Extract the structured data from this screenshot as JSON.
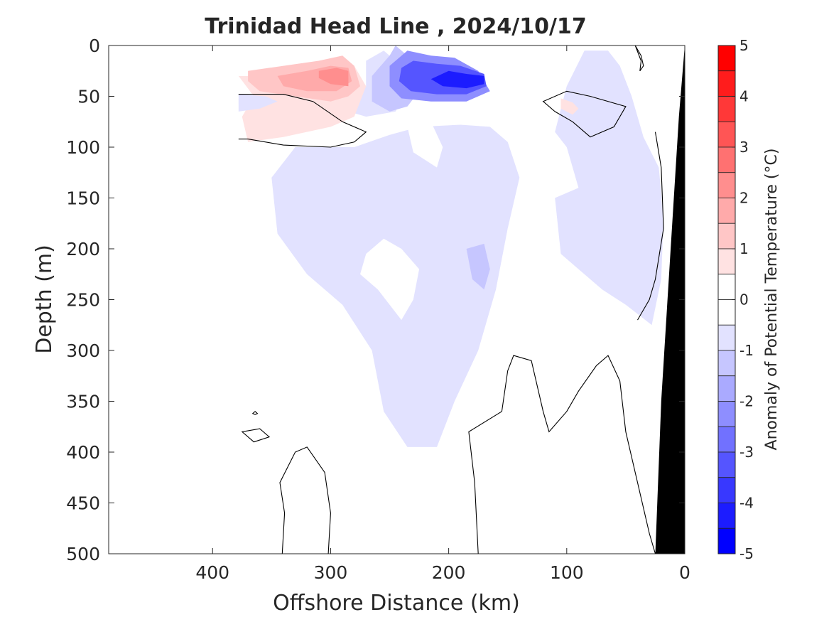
{
  "chart_data": {
    "type": "heatmap",
    "title": "Trinidad Head Line , 2024/10/17",
    "xlabel": "Offshore Distance (km)",
    "ylabel": "Depth (m)",
    "xlim": [
      488,
      0
    ],
    "ylim": [
      500,
      0
    ],
    "x_reversed": true,
    "y_reversed": true,
    "x_ticks": [
      400,
      300,
      200,
      100,
      0
    ],
    "x_tick_labels": [
      "400",
      "300",
      "200",
      "100",
      "0"
    ],
    "y_ticks": [
      0,
      50,
      100,
      150,
      200,
      250,
      300,
      350,
      400,
      450,
      500
    ],
    "y_tick_labels": [
      "0",
      "50",
      "100",
      "150",
      "200",
      "250",
      "300",
      "350",
      "400",
      "450",
      "500"
    ],
    "colorbar": {
      "label": "Anomaly of Potential Temperature (°C)",
      "range": [
        -5,
        5
      ],
      "ticks": [
        5,
        4,
        3,
        2,
        1,
        0,
        -1,
        -2,
        -3,
        -4,
        -5
      ],
      "tick_labels": [
        "5",
        "4",
        "3",
        "2",
        "1",
        "0",
        "-1",
        "-2",
        "-3",
        "-4",
        "-5"
      ],
      "levels": [
        {
          "from": 4.5,
          "to": 5.0,
          "color": "#ff0000"
        },
        {
          "from": 4.0,
          "to": 4.5,
          "color": "#ff1c1c"
        },
        {
          "from": 3.5,
          "to": 4.0,
          "color": "#ff3838"
        },
        {
          "from": 3.0,
          "to": 3.5,
          "color": "#ff5555"
        },
        {
          "from": 2.5,
          "to": 3.0,
          "color": "#ff7171"
        },
        {
          "from": 2.0,
          "to": 2.5,
          "color": "#ff8e8e"
        },
        {
          "from": 1.5,
          "to": 2.0,
          "color": "#ffaaaa"
        },
        {
          "from": 1.0,
          "to": 1.5,
          "color": "#ffc6c6"
        },
        {
          "from": 0.5,
          "to": 1.0,
          "color": "#ffe2e2"
        },
        {
          "from": 0.0,
          "to": 0.5,
          "color": "#ffffff"
        },
        {
          "from": -0.5,
          "to": 0.0,
          "color": "#ffffff"
        },
        {
          "from": -1.0,
          "to": -0.5,
          "color": "#e2e2ff"
        },
        {
          "from": -1.5,
          "to": -1.0,
          "color": "#c6c6ff"
        },
        {
          "from": -2.0,
          "to": -1.5,
          "color": "#aaaaff"
        },
        {
          "from": -2.5,
          "to": -2.0,
          "color": "#8e8eff"
        },
        {
          "from": -3.0,
          "to": -2.5,
          "color": "#7171ff"
        },
        {
          "from": -3.5,
          "to": -3.0,
          "color": "#5555ff"
        },
        {
          "from": -4.0,
          "to": -3.5,
          "color": "#3838ff"
        },
        {
          "from": -4.5,
          "to": -4.0,
          "color": "#1c1cff"
        },
        {
          "from": -5.0,
          "to": -4.5,
          "color": "#0000ff"
        }
      ]
    },
    "regions": [
      {
        "value": -0.75,
        "color": "#e2e2ff",
        "points": [
          [
            280,
            100
          ],
          [
            250,
            88
          ],
          [
            225,
            80
          ],
          [
            190,
            78
          ],
          [
            165,
            80
          ],
          [
            150,
            95
          ],
          [
            140,
            130
          ],
          [
            150,
            180
          ],
          [
            160,
            240
          ],
          [
            175,
            300
          ],
          [
            195,
            350
          ],
          [
            210,
            395
          ],
          [
            235,
            395
          ],
          [
            255,
            360
          ],
          [
            265,
            300
          ],
          [
            290,
            255
          ],
          [
            320,
            225
          ],
          [
            345,
            185
          ],
          [
            350,
            130
          ],
          [
            330,
            100
          ]
        ]
      },
      {
        "value": -0.75,
        "color": "#e2e2ff",
        "points": [
          [
            110,
            150
          ],
          [
            105,
            205
          ],
          [
            85,
            225
          ],
          [
            70,
            240
          ],
          [
            50,
            255
          ],
          [
            28,
            275
          ],
          [
            20,
            230
          ],
          [
            18,
            170
          ],
          [
            22,
            120
          ],
          [
            35,
            90
          ],
          [
            45,
            50
          ],
          [
            55,
            20
          ],
          [
            65,
            5
          ],
          [
            85,
            5
          ],
          [
            100,
            40
          ],
          [
            110,
            85
          ],
          [
            100,
            100
          ],
          [
            90,
            140
          ]
        ]
      },
      {
        "value": -1.25,
        "color": "#c6c6ff",
        "points": [
          [
            185,
            200
          ],
          [
            180,
            230
          ],
          [
            170,
            240
          ],
          [
            165,
            220
          ],
          [
            170,
            195
          ]
        ]
      },
      {
        "value": 0.25,
        "color": "#ffffff",
        "points": [
          [
            275,
            225
          ],
          [
            260,
            240
          ],
          [
            240,
            270
          ],
          [
            230,
            250
          ],
          [
            225,
            220
          ],
          [
            240,
            200
          ],
          [
            255,
            190
          ],
          [
            270,
            205
          ]
        ]
      },
      {
        "value": 0.25,
        "color": "#ffffff",
        "points": [
          [
            230,
            105
          ],
          [
            210,
            120
          ],
          [
            205,
            100
          ],
          [
            215,
            75
          ],
          [
            235,
            80
          ]
        ]
      },
      {
        "value": -0.75,
        "color": "#e2e2ff",
        "points": [
          [
            255,
            5
          ],
          [
            240,
            20
          ],
          [
            235,
            45
          ],
          [
            245,
            65
          ],
          [
            270,
            70
          ],
          [
            285,
            65
          ],
          [
            270,
            40
          ],
          [
            270,
            15
          ]
        ]
      },
      {
        "value": -1.25,
        "color": "#c6c6ff",
        "points": [
          [
            245,
            0
          ],
          [
            230,
            15
          ],
          [
            225,
            45
          ],
          [
            235,
            60
          ],
          [
            250,
            65
          ],
          [
            265,
            55
          ],
          [
            265,
            30
          ],
          [
            250,
            10
          ]
        ]
      },
      {
        "value": -2.25,
        "color": "#8e8eff",
        "points": [
          [
            235,
            5
          ],
          [
            215,
            10
          ],
          [
            195,
            12
          ],
          [
            175,
            25
          ],
          [
            165,
            45
          ],
          [
            185,
            55
          ],
          [
            215,
            55
          ],
          [
            240,
            52
          ],
          [
            250,
            40
          ],
          [
            250,
            20
          ]
        ]
      },
      {
        "value": -3.25,
        "color": "#5555ff",
        "points": [
          [
            230,
            15
          ],
          [
            210,
            18
          ],
          [
            190,
            20
          ],
          [
            170,
            28
          ],
          [
            168,
            40
          ],
          [
            185,
            48
          ],
          [
            210,
            48
          ],
          [
            232,
            45
          ],
          [
            242,
            35
          ],
          [
            240,
            22
          ]
        ]
      },
      {
        "value": -4.25,
        "color": "#1c1cff",
        "points": [
          [
            200,
            25
          ],
          [
            185,
            28
          ],
          [
            170,
            30
          ],
          [
            170,
            38
          ],
          [
            185,
            42
          ],
          [
            205,
            40
          ],
          [
            215,
            33
          ]
        ]
      },
      {
        "value": 0.75,
        "color": "#ffe2e2",
        "points": [
          [
            378,
            30
          ],
          [
            340,
            30
          ],
          [
            310,
            25
          ],
          [
            280,
            20
          ],
          [
            270,
            40
          ],
          [
            280,
            70
          ],
          [
            300,
            80
          ],
          [
            340,
            90
          ],
          [
            370,
            95
          ],
          [
            375,
            70
          ],
          [
            365,
            50
          ]
        ]
      },
      {
        "value": 1.25,
        "color": "#ffc6c6",
        "points": [
          [
            370,
            25
          ],
          [
            340,
            20
          ],
          [
            310,
            15
          ],
          [
            290,
            10
          ],
          [
            280,
            20
          ],
          [
            275,
            40
          ],
          [
            285,
            50
          ],
          [
            300,
            55
          ],
          [
            330,
            50
          ],
          [
            360,
            45
          ],
          [
            370,
            35
          ]
        ]
      },
      {
        "value": 1.75,
        "color": "#ffaaaa",
        "points": [
          [
            345,
            30
          ],
          [
            320,
            25
          ],
          [
            300,
            20
          ],
          [
            285,
            22
          ],
          [
            282,
            35
          ],
          [
            295,
            45
          ],
          [
            320,
            45
          ],
          [
            340,
            40
          ]
        ]
      },
      {
        "value": 2.25,
        "color": "#ff8e8e",
        "points": [
          [
            310,
            25
          ],
          [
            295,
            22
          ],
          [
            285,
            25
          ],
          [
            285,
            40
          ],
          [
            300,
            38
          ],
          [
            310,
            32
          ]
        ]
      },
      {
        "value": 0.75,
        "color": "#ffe2e2",
        "points": [
          [
            105,
            52
          ],
          [
            95,
            56
          ],
          [
            90,
            62
          ],
          [
            95,
            68
          ],
          [
            105,
            62
          ]
        ]
      },
      {
        "value": -0.75,
        "color": "#e2e2ff",
        "points": [
          [
            378,
            48
          ],
          [
            355,
            50
          ],
          [
            345,
            55
          ],
          [
            360,
            62
          ],
          [
            378,
            65
          ]
        ]
      }
    ],
    "zero_contours": [
      {
        "closed": false,
        "points": [
          [
            378,
            48
          ],
          [
            340,
            48
          ],
          [
            315,
            55
          ],
          [
            290,
            75
          ],
          [
            270,
            85
          ],
          [
            280,
            95
          ],
          [
            300,
            100
          ],
          [
            340,
            98
          ],
          [
            370,
            92
          ],
          [
            378,
            92
          ]
        ]
      },
      {
        "closed": true,
        "points": [
          [
            120,
            55
          ],
          [
            100,
            45
          ],
          [
            80,
            50
          ],
          [
            50,
            60
          ],
          [
            60,
            80
          ],
          [
            80,
            90
          ],
          [
            95,
            75
          ],
          [
            110,
            65
          ]
        ]
      },
      {
        "closed": true,
        "points": [
          [
            42,
            0
          ],
          [
            37,
            15
          ],
          [
            38,
            25
          ],
          [
            35,
            20
          ],
          [
            37,
            10
          ]
        ]
      },
      {
        "closed": true,
        "points": [
          [
            375,
            380
          ],
          [
            360,
            377
          ],
          [
            352,
            385
          ],
          [
            365,
            390
          ]
        ]
      },
      {
        "closed": true,
        "points": [
          [
            364,
            360
          ],
          [
            362,
            362
          ],
          [
            364,
            363
          ],
          [
            366,
            362
          ]
        ]
      },
      {
        "closed": false,
        "points": [
          [
            341,
            500
          ],
          [
            339,
            460
          ],
          [
            343,
            430
          ],
          [
            330,
            400
          ],
          [
            320,
            395
          ],
          [
            305,
            420
          ],
          [
            300,
            460
          ],
          [
            302,
            500
          ]
        ]
      },
      {
        "closed": false,
        "points": [
          [
            175,
            500
          ],
          [
            178,
            430
          ],
          [
            183,
            380
          ],
          [
            155,
            360
          ],
          [
            150,
            320
          ],
          [
            145,
            305
          ],
          [
            130,
            310
          ],
          [
            120,
            360
          ],
          [
            115,
            380
          ],
          [
            100,
            360
          ],
          [
            90,
            340
          ],
          [
            75,
            315
          ],
          [
            65,
            305
          ],
          [
            55,
            330
          ],
          [
            50,
            380
          ],
          [
            40,
            430
          ],
          [
            30,
            480
          ],
          [
            25,
            500
          ]
        ]
      },
      {
        "closed": false,
        "points": [
          [
            25,
            85
          ],
          [
            20,
            120
          ],
          [
            18,
            180
          ],
          [
            25,
            230
          ],
          [
            30,
            250
          ],
          [
            40,
            270
          ]
        ]
      }
    ],
    "bathymetry": {
      "color": "#000000",
      "points": [
        [
          0,
          0
        ],
        [
          0,
          500
        ],
        [
          25,
          500
        ],
        [
          20,
          350
        ],
        [
          12,
          200
        ],
        [
          5,
          70
        ]
      ]
    }
  }
}
